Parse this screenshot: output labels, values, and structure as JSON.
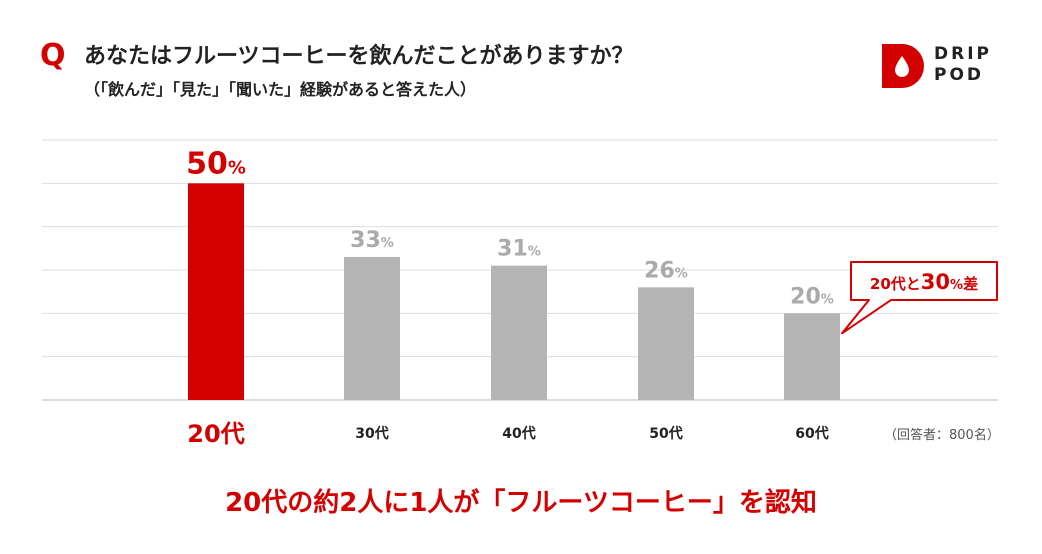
{
  "header": {
    "q_mark": "Q",
    "title": "あなたはフルーツコーヒーを飲んだことがありますか？",
    "subtitle": "（「飲んだ」「見た」「聞いた」経験があると答えた人）"
  },
  "logo": {
    "line1": "DRIP",
    "line2": "POD"
  },
  "chart_data": {
    "type": "bar",
    "categories": [
      "20代",
      "30代",
      "40代",
      "50代",
      "60代"
    ],
    "values": [
      50,
      33,
      31,
      26,
      20
    ],
    "unit": "%",
    "ylim": [
      0,
      60
    ],
    "grid": true,
    "highlight_index": 0,
    "colors": {
      "highlight": "#d40000",
      "default": "#b4b4b4",
      "grid": "#dddddd"
    },
    "annotation": {
      "prefix": "20代と",
      "value": "30",
      "unit": "%",
      "suffix": "差"
    }
  },
  "note": "（回答者：800名）",
  "footer": "20代の約2人に1人が「フルーツコーヒー」を認知"
}
